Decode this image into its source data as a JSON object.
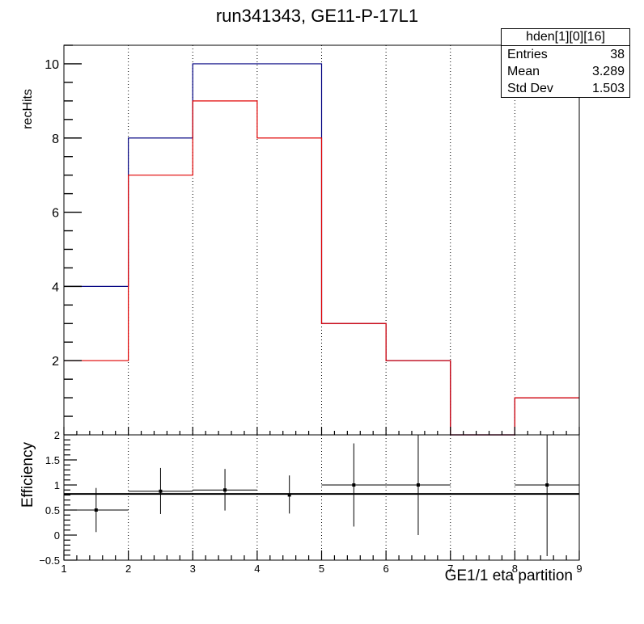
{
  "title": "run341343, GE11-P-17L1",
  "stats_box": {
    "name": "hden[1][0][16]",
    "rows": [
      {
        "label": "Entries",
        "value": "38"
      },
      {
        "label": "Mean",
        "value": "3.289"
      },
      {
        "label": "Std Dev",
        "value": "1.503"
      }
    ]
  },
  "chart_data": [
    {
      "type": "bar",
      "style": "step-histogram",
      "ylabel": "recHits",
      "xlim": [
        1,
        9
      ],
      "ylim": [
        0,
        10.5
      ],
      "y_ticks": [
        "2",
        "4",
        "6",
        "8",
        "10"
      ],
      "grid_x": true,
      "bin_edges": [
        1,
        2,
        3,
        4,
        5,
        6,
        7,
        8,
        9
      ],
      "series": [
        {
          "color": "#000080",
          "values": [
            4,
            8,
            10,
            10,
            3,
            2,
            0,
            1
          ]
        },
        {
          "color": "#e00000",
          "values": [
            2,
            7,
            9,
            8,
            3,
            2,
            0,
            1
          ]
        }
      ]
    },
    {
      "type": "scatter",
      "style": "errorbars",
      "ylabel": "Efficiency",
      "xlabel": "GE1/1 eta partition",
      "xlim": [
        1,
        9
      ],
      "ylim": [
        -0.5,
        2
      ],
      "x_ticks": [
        "1",
        "2",
        "3",
        "4",
        "5",
        "6",
        "7",
        "8",
        "9"
      ],
      "y_ticks": [
        "−0.5",
        "0",
        "0.5",
        "1",
        "1.5",
        "2"
      ],
      "grid_x": true,
      "fit_line": 0.82,
      "points": [
        {
          "x": 1.5,
          "y": 0.5,
          "xerr": 0.5,
          "ylow": 0.06,
          "yhigh": 0.94
        },
        {
          "x": 2.5,
          "y": 0.875,
          "xerr": 0.5,
          "ylow": 0.42,
          "yhigh": 1.34
        },
        {
          "x": 3.5,
          "y": 0.9,
          "xerr": 0.5,
          "ylow": 0.49,
          "yhigh": 1.32
        },
        {
          "x": 4.5,
          "y": 0.8,
          "xerr": 0.0,
          "ylow": 0.43,
          "yhigh": 1.19
        },
        {
          "x": 5.5,
          "y": 1.0,
          "xerr": 0.5,
          "ylow": 0.17,
          "yhigh": 1.83
        },
        {
          "x": 6.5,
          "y": 1.0,
          "xerr": 0.5,
          "ylow": 0.0,
          "yhigh": 2.0
        },
        {
          "x": 8.5,
          "y": 1.0,
          "xerr": 0.5,
          "ylow": -0.42,
          "yhigh": 2.0
        }
      ]
    }
  ]
}
